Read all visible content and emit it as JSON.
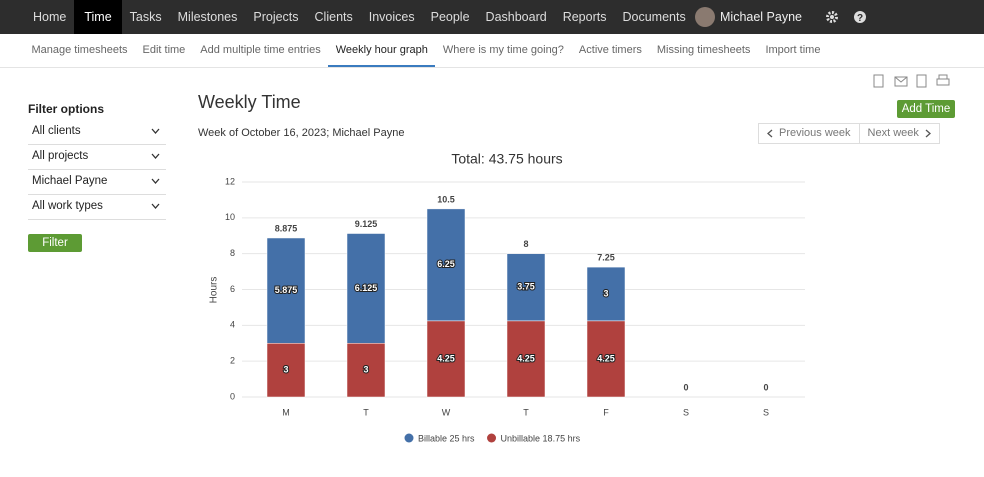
{
  "nav": {
    "items": [
      "Home",
      "Time",
      "Tasks",
      "Milestones",
      "Projects",
      "Clients",
      "Invoices",
      "People",
      "Dashboard",
      "Reports",
      "Documents"
    ],
    "user": "Michael Payne"
  },
  "subnav": [
    "Manage timesheets",
    "Edit time",
    "Add multiple time entries",
    "Weekly hour graph",
    "Where is my time going?",
    "Active timers",
    "Missing timesheets",
    "Import time"
  ],
  "filters": {
    "title": "Filter options",
    "selects": [
      "All clients",
      "All projects",
      "Michael Payne",
      "All work types"
    ],
    "button": "Filter"
  },
  "page": {
    "title": "Weekly Time",
    "subtitle": "Week of October 16, 2023; Michael Payne",
    "add_button": "Add Time",
    "prev": "Previous week",
    "next": "Next week"
  },
  "chart_data": {
    "type": "stacked_bar",
    "title": "Total: 43.75 hours",
    "y_label": "Hours",
    "categories": [
      "M",
      "T",
      "W",
      "T",
      "F",
      "S",
      "S"
    ],
    "series": [
      {
        "name": "Billable 25 hrs",
        "color": "#4470a8",
        "values": [
          5.875,
          6.125,
          6.25,
          3.75,
          3,
          0,
          0
        ]
      },
      {
        "name": "Unbillable 18.75 hrs",
        "color": "#b0413e",
        "values": [
          3,
          3,
          4.25,
          4.25,
          4.25,
          0,
          0
        ]
      }
    ],
    "totals": [
      8.875,
      9.125,
      10.5,
      8,
      7.25,
      0,
      0
    ],
    "ylim": [
      0,
      12
    ],
    "yticks": [
      0,
      2,
      4,
      6,
      8,
      10,
      12
    ],
    "grid": true
  }
}
